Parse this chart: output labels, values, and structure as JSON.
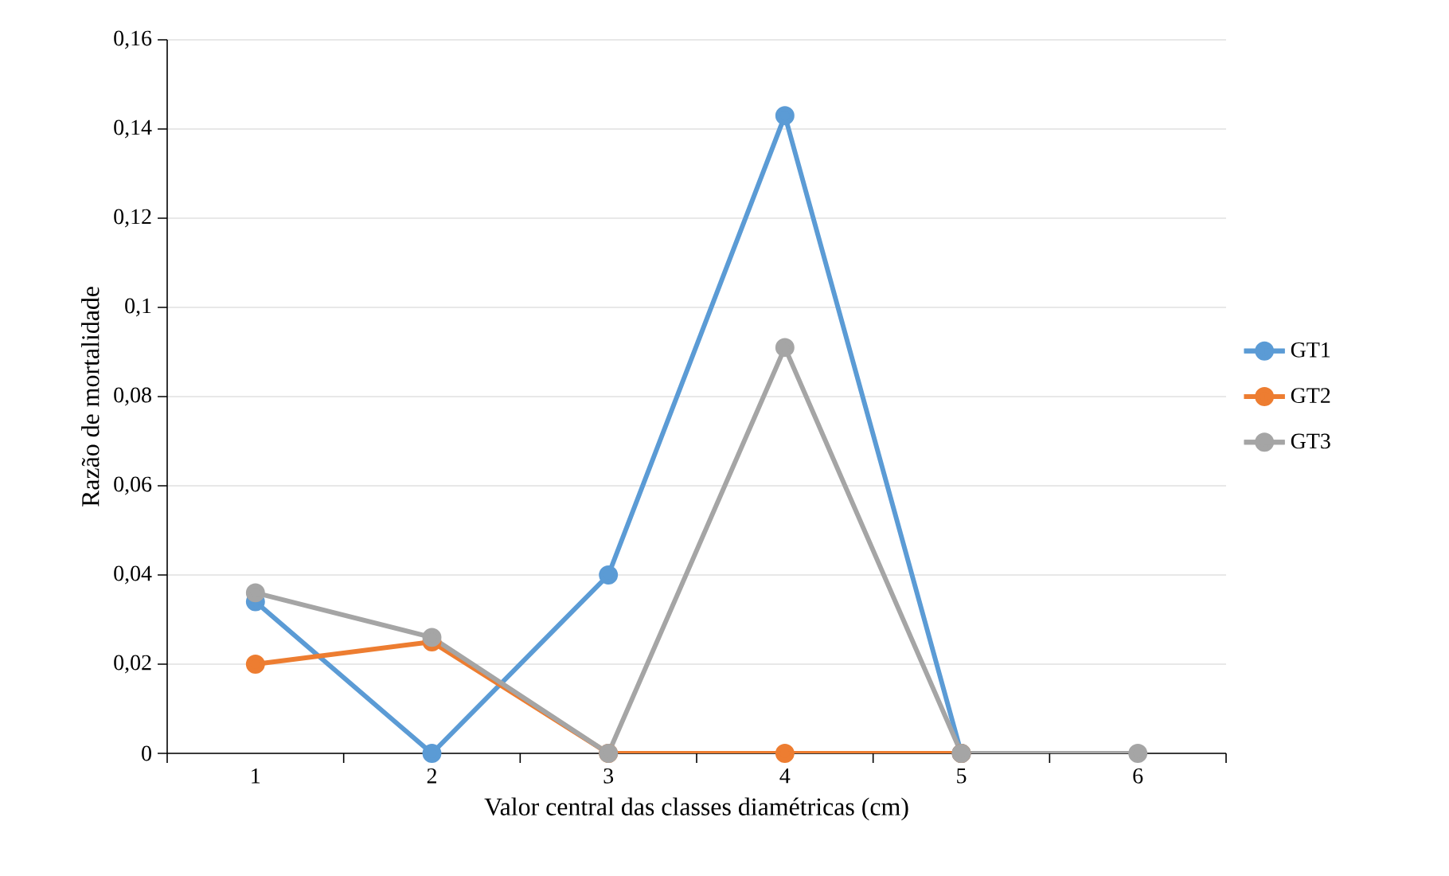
{
  "chart_data": {
    "type": "line",
    "xlabel": "Valor central das classes diamétricas (cm)",
    "ylabel": "Razão de mortalidade",
    "categories": [
      "1",
      "2",
      "3",
      "4",
      "5",
      "6"
    ],
    "series": [
      {
        "name": "GT1",
        "color": "#5b9bd5",
        "values": [
          0.034,
          0,
          0.04,
          0.143,
          0,
          null
        ]
      },
      {
        "name": "GT2",
        "color": "#ed7d31",
        "values": [
          0.02,
          0.025,
          0,
          0,
          0,
          null
        ]
      },
      {
        "name": "GT3",
        "color": "#a5a5a5",
        "values": [
          0.036,
          0.026,
          0,
          0.091,
          0,
          0
        ]
      }
    ],
    "ylim": [
      0,
      0.16
    ],
    "yticks": [
      0,
      {
        "value": 0.02,
        "label": "0,02"
      },
      {
        "value": 0.04,
        "label": "0,04"
      },
      {
        "value": 0.06,
        "label": "0,06"
      },
      {
        "value": 0.08,
        "label": "0,08"
      },
      {
        "value": 0.1,
        "label": "0,1"
      },
      {
        "value": 0.12,
        "label": "0,12"
      },
      {
        "value": 0.14,
        "label": "0,14"
      },
      {
        "value": 0.16,
        "label": "0,16"
      }
    ],
    "grid": "y",
    "legend": "right",
    "marker": "circle",
    "line_style": "solid"
  }
}
